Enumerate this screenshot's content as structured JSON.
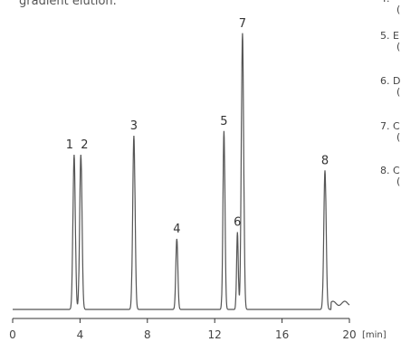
{
  "caption": "gradient elution.",
  "legend": {
    "entries": [
      {
        "number": "4.",
        "text": "(",
        "visible_top": "(",
        "partial_first": "("
      },
      {
        "number": "5. E",
        "text": "("
      },
      {
        "number": "6. D",
        "text": "("
      },
      {
        "number": "7. C",
        "text": "("
      },
      {
        "number": "8. C",
        "text": "("
      }
    ]
  },
  "chart_data": {
    "type": "line",
    "x_unit_label": "[min]",
    "xlim": [
      0,
      20
    ],
    "x_ticks": [
      0,
      4,
      8,
      12,
      16,
      20
    ],
    "x_tick_labels": [
      "0",
      "4",
      "8",
      "12",
      "16",
      "20"
    ],
    "baseline": 0,
    "peaks": [
      {
        "label": "1",
        "x": 3.65,
        "height": 228,
        "sigma": 0.07
      },
      {
        "label": "2",
        "x": 4.05,
        "height": 228,
        "sigma": 0.07
      },
      {
        "label": "3",
        "x": 7.2,
        "height": 256,
        "sigma": 0.07
      },
      {
        "label": "4",
        "x": 9.75,
        "height": 104,
        "sigma": 0.06
      },
      {
        "label": "5",
        "x": 12.55,
        "height": 263,
        "sigma": 0.06
      },
      {
        "label": "6",
        "x": 13.35,
        "height": 114,
        "sigma": 0.05
      },
      {
        "label": "7",
        "x": 13.65,
        "height": 407,
        "sigma": 0.07
      },
      {
        "label": "8",
        "x": 18.55,
        "height": 205,
        "sigma": 0.07
      }
    ],
    "line_color": "#555555",
    "axis_color": "#333333"
  }
}
